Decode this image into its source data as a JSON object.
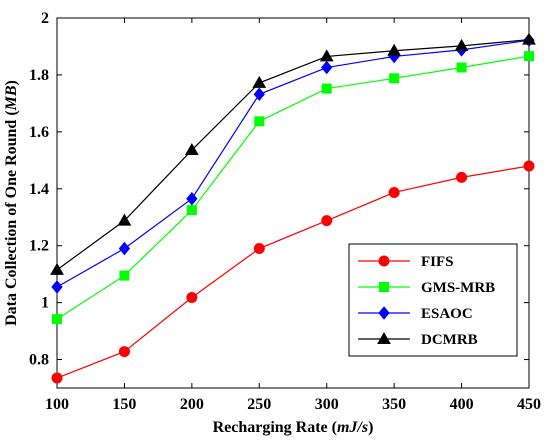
{
  "chart_data": {
    "type": "line",
    "x": [
      100,
      150,
      200,
      250,
      300,
      350,
      400,
      450
    ],
    "xticks": [
      100,
      150,
      200,
      250,
      300,
      350,
      400,
      450
    ],
    "yticks": [
      0.8,
      1,
      1.2,
      1.4,
      1.6,
      1.8,
      2
    ],
    "xlim": [
      100,
      450
    ],
    "ylim": [
      0.7,
      2.0
    ],
    "xlabel": {
      "prefix": "Recharging Rate (",
      "unit": "mJ/s",
      "suffix": ")"
    },
    "ylabel": {
      "prefix": "Data Collection of One Round (",
      "unit": "MB",
      "suffix": ")"
    },
    "grid": false,
    "legend_position": "bottom-right",
    "series": [
      {
        "name": "FIFS",
        "color": "#ff0000",
        "marker": "circle",
        "values": [
          0.735,
          0.828,
          1.018,
          1.19,
          1.288,
          1.387,
          1.44,
          1.48
        ]
      },
      {
        "name": "GMS-MRB",
        "color": "#00ff00",
        "marker": "square",
        "values": [
          0.942,
          1.095,
          1.325,
          1.637,
          1.752,
          1.788,
          1.826,
          1.866
        ]
      },
      {
        "name": "ESAOC",
        "color": "#0000ff",
        "marker": "diamond",
        "values": [
          1.055,
          1.19,
          1.365,
          1.732,
          1.826,
          1.865,
          1.888,
          1.922
        ]
      },
      {
        "name": "DCMRB",
        "color": "#000000",
        "marker": "triangle",
        "values": [
          1.115,
          1.288,
          1.536,
          1.772,
          1.865,
          1.885,
          1.902,
          1.924
        ]
      }
    ]
  }
}
